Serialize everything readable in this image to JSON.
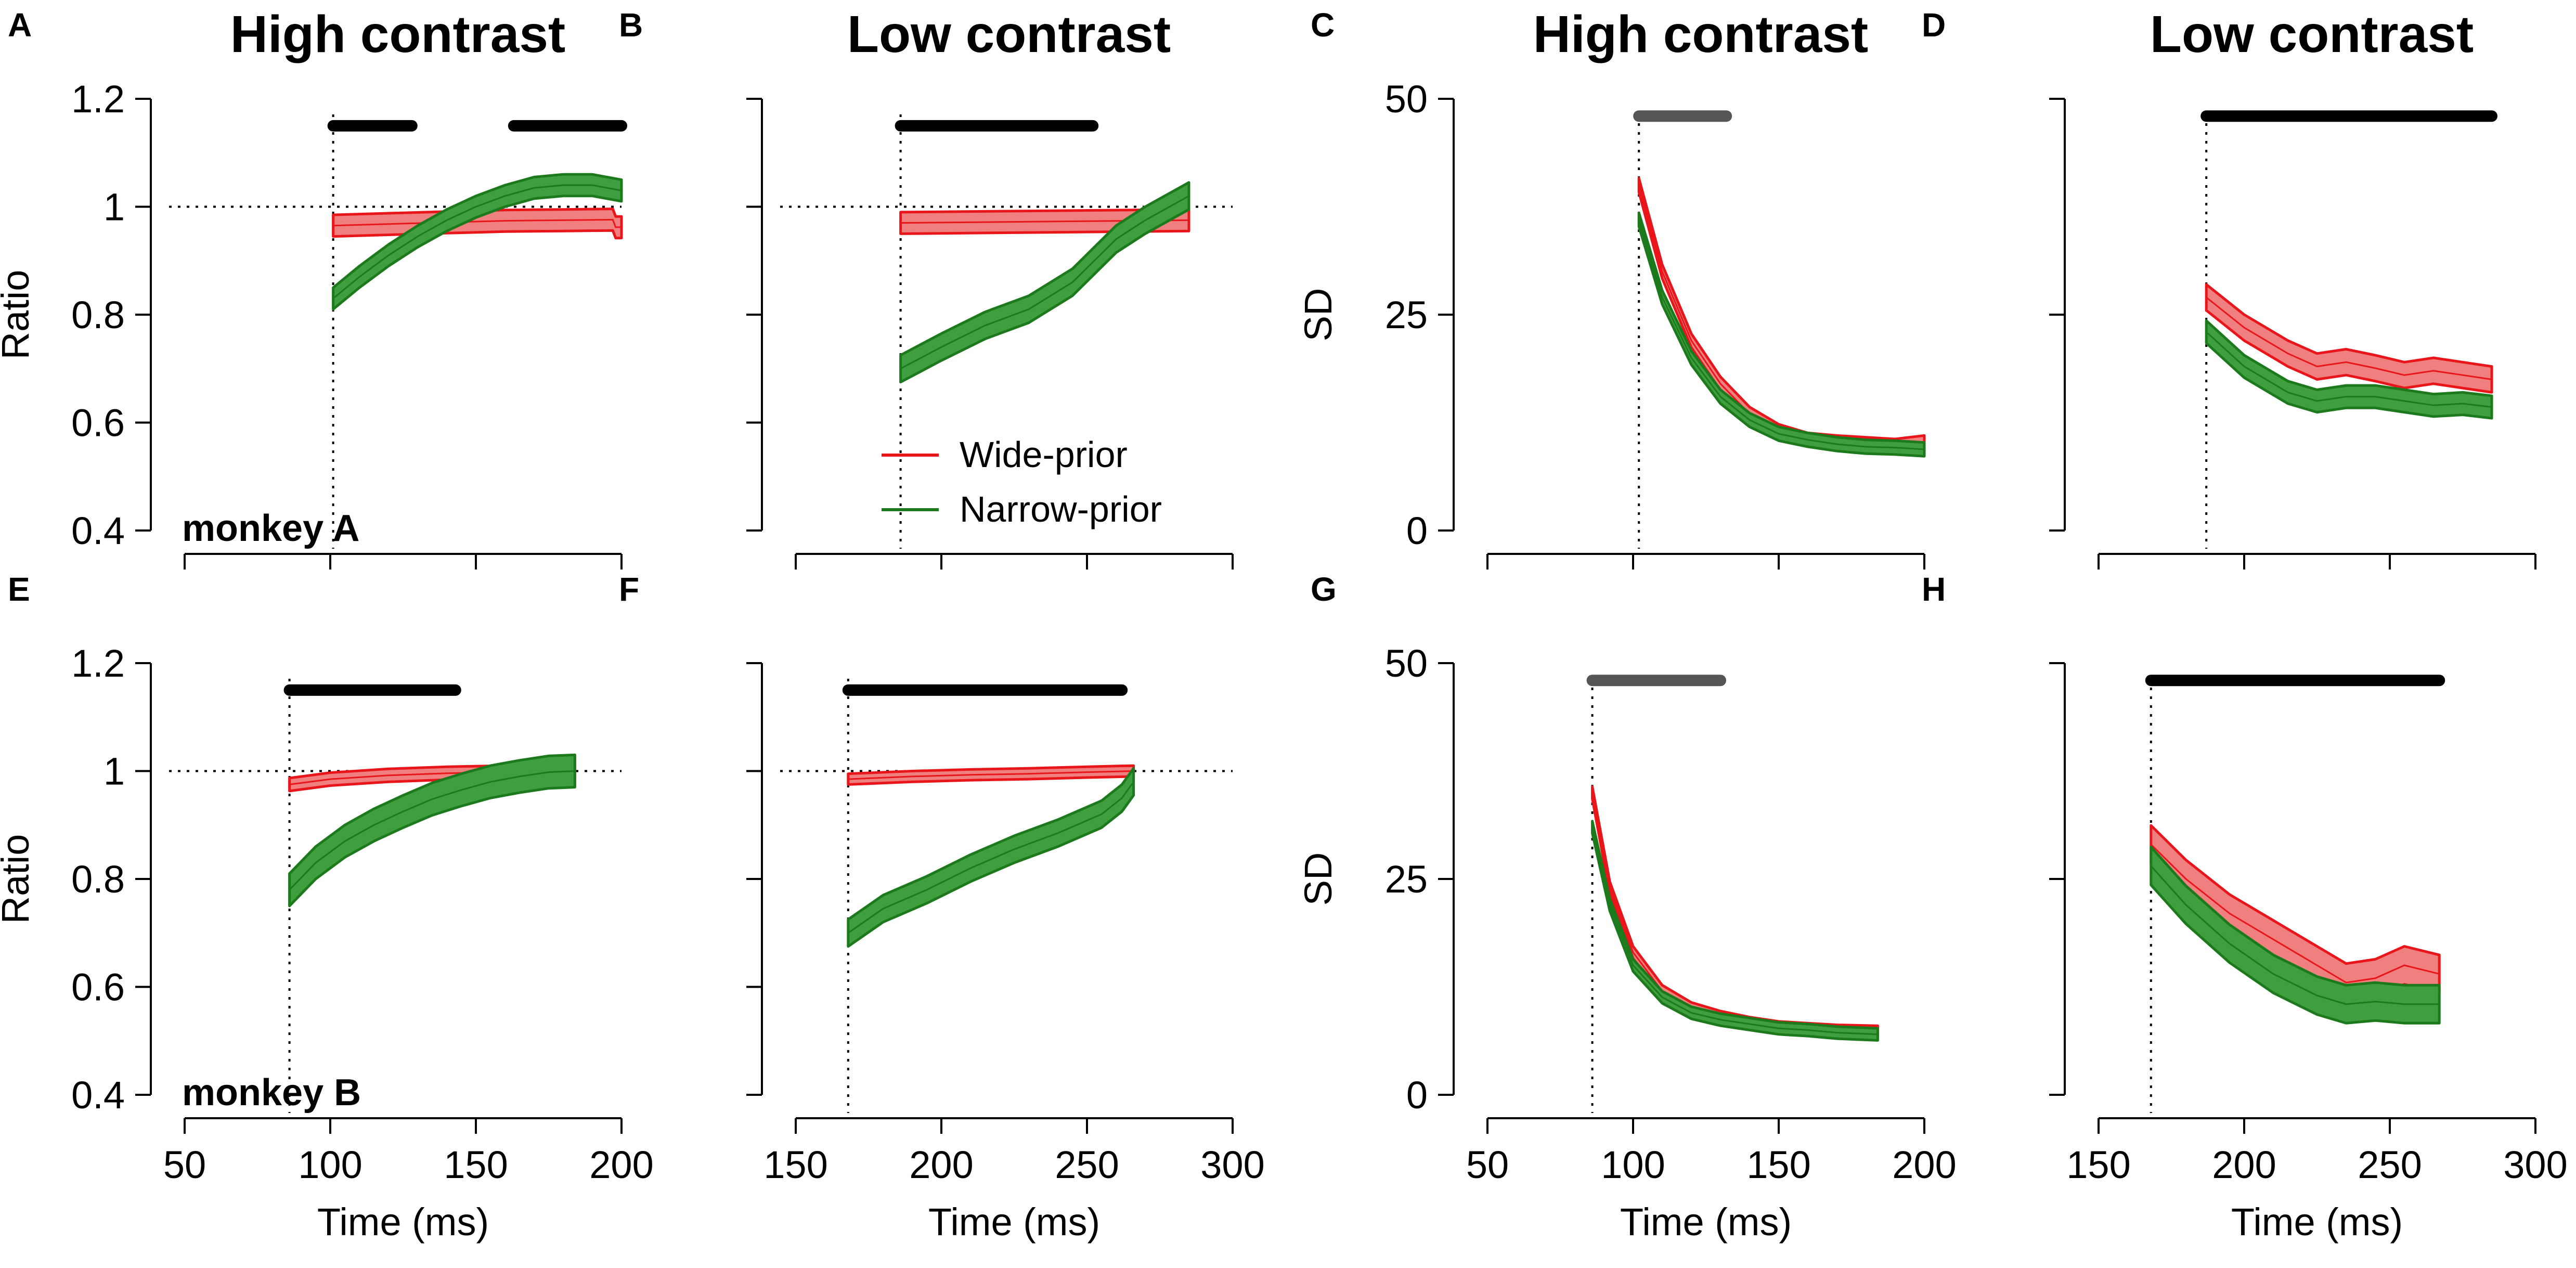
{
  "colors": {
    "wide": "#e8161b",
    "wide_band": "#f08080",
    "narrow": "#1c7a1c",
    "narrow_band": "#3f9f3f",
    "sig_black": "#000000",
    "sig_gray": "#555555"
  },
  "legend": {
    "wide": "Wide-prior",
    "narrow": "Narrow-prior"
  },
  "chart_data": [
    {
      "type": "line",
      "letter": "A",
      "title": "High contrast",
      "xlabel": "",
      "ylabel": "Ratio",
      "xlim": [
        50,
        200
      ],
      "ylim": [
        0.4,
        1.2
      ],
      "xticks": [
        50,
        100,
        150,
        200
      ],
      "yticks": [
        0.4,
        0.6,
        0.8,
        1,
        1.2
      ],
      "ytick_labels": [
        "0.4",
        "0.6",
        "0.8",
        "1",
        "1.2"
      ],
      "show_xtick_labels": false,
      "vline": 101,
      "hline": 1,
      "monkey": "monkey A",
      "sig_color": "black",
      "sig_bars": [
        [
          101,
          128
        ],
        [
          163,
          200
        ]
      ],
      "sig_y": 1.15,
      "series": [
        {
          "name": "Wide-prior",
          "band": 0.02,
          "x": [
            101,
            120,
            140,
            160,
            180,
            197,
            198,
            200
          ],
          "y": [
            0.965,
            0.968,
            0.971,
            0.974,
            0.975,
            0.976,
            0.962,
            0.962
          ]
        },
        {
          "name": "Narrow-prior",
          "band": 0.02,
          "x": [
            101,
            110,
            120,
            130,
            140,
            150,
            160,
            170,
            180,
            190,
            200
          ],
          "y": [
            0.83,
            0.87,
            0.91,
            0.945,
            0.975,
            1.0,
            1.02,
            1.035,
            1.04,
            1.04,
            1.03
          ]
        }
      ]
    },
    {
      "type": "line",
      "letter": "B",
      "title": "Low contrast",
      "xlabel": "",
      "ylabel": "",
      "xlim": [
        150,
        300
      ],
      "ylim": [
        0.4,
        1.2
      ],
      "xticks": [
        150,
        200,
        250,
        300
      ],
      "yticks": [
        0.4,
        0.6,
        0.8,
        1,
        1.2
      ],
      "ytick_labels": [],
      "show_xtick_labels": false,
      "vline": 186,
      "hline": 1,
      "monkey": "",
      "sig_color": "black",
      "sig_bars": [
        [
          186,
          252
        ]
      ],
      "sig_y": 1.15,
      "series": [
        {
          "name": "Wide-prior",
          "band": 0.02,
          "x": [
            186,
            285
          ],
          "y": [
            0.97,
            0.975
          ]
        },
        {
          "name": "Narrow-prior",
          "band": 0.025,
          "x": [
            186,
            200,
            215,
            230,
            245,
            260,
            270,
            285
          ],
          "y": [
            0.7,
            0.74,
            0.78,
            0.81,
            0.86,
            0.94,
            0.975,
            1.02
          ]
        }
      ]
    },
    {
      "type": "line",
      "letter": "C",
      "title": "High contrast",
      "xlabel": "",
      "ylabel": "SD",
      "xlim": [
        50,
        200
      ],
      "ylim": [
        0,
        50
      ],
      "xticks": [
        50,
        100,
        150,
        200
      ],
      "yticks": [
        0,
        25,
        50
      ],
      "ytick_labels": [
        "0",
        "25",
        "50"
      ],
      "show_xtick_labels": false,
      "vline": 102,
      "hline": null,
      "monkey": "",
      "sig_color": "gray",
      "sig_bars": [
        [
          102,
          132
        ]
      ],
      "sig_y": 48,
      "series": [
        {
          "name": "Wide-prior",
          "band": 0.8,
          "x": [
            102,
            110,
            120,
            130,
            140,
            150,
            160,
            170,
            180,
            190,
            200
          ],
          "y": [
            40,
            30,
            22,
            17,
            13.5,
            11.5,
            10.5,
            10.2,
            10,
            9.8,
            10.2
          ]
        },
        {
          "name": "Narrow-prior",
          "band": 0.8,
          "x": [
            102,
            110,
            120,
            130,
            140,
            150,
            160,
            170,
            180,
            190,
            200
          ],
          "y": [
            36,
            27,
            20,
            15.5,
            12.8,
            11.2,
            10.5,
            10,
            9.7,
            9.6,
            9.4
          ]
        }
      ]
    },
    {
      "type": "line",
      "letter": "D",
      "title": "Low contrast",
      "xlabel": "",
      "ylabel": "",
      "xlim": [
        150,
        300
      ],
      "ylim": [
        0,
        50
      ],
      "xticks": [
        150,
        200,
        250,
        300
      ],
      "yticks": [
        0,
        25,
        50
      ],
      "ytick_labels": [],
      "show_xtick_labels": false,
      "vline": 187,
      "hline": null,
      "monkey": "",
      "sig_color": "black",
      "sig_bars": [
        [
          187,
          285
        ]
      ],
      "sig_y": 48,
      "series": [
        {
          "name": "Wide-prior",
          "band": 1.5,
          "x": [
            187,
            200,
            215,
            225,
            235,
            245,
            255,
            265,
            275,
            285
          ],
          "y": [
            27,
            23.5,
            20.5,
            19,
            19.5,
            18.8,
            18,
            18.5,
            18,
            17.5
          ]
        },
        {
          "name": "Narrow-prior",
          "band": 1.3,
          "x": [
            187,
            200,
            215,
            225,
            235,
            245,
            255,
            265,
            275,
            285
          ],
          "y": [
            23,
            19,
            16,
            15,
            15.5,
            15.5,
            15,
            14.5,
            14.7,
            14.3
          ]
        }
      ]
    },
    {
      "type": "line",
      "letter": "E",
      "title": "",
      "xlabel": "Time (ms)",
      "ylabel": "Ratio",
      "xlim": [
        50,
        200
      ],
      "ylim": [
        0.4,
        1.2
      ],
      "xticks": [
        50,
        100,
        150,
        200
      ],
      "yticks": [
        0.4,
        0.6,
        0.8,
        1,
        1.2
      ],
      "ytick_labels": [
        "0.4",
        "0.6",
        "0.8",
        "1",
        "1.2"
      ],
      "show_xtick_labels": true,
      "xtick_labels": [
        "50",
        "100",
        "150",
        "200"
      ],
      "vline": 86,
      "hline": 1,
      "monkey": "monkey B",
      "sig_color": "black",
      "sig_bars": [
        [
          86,
          143
        ]
      ],
      "sig_y": 1.15,
      "series": [
        {
          "name": "Wide-prior",
          "band": 0.012,
          "x": [
            86,
            100,
            120,
            140,
            160,
            184
          ],
          "y": [
            0.975,
            0.985,
            0.992,
            0.996,
            0.998,
            1.0
          ]
        },
        {
          "name": "Narrow-prior",
          "band": 0.03,
          "x": [
            86,
            95,
            105,
            115,
            125,
            135,
            145,
            155,
            165,
            175,
            184
          ],
          "y": [
            0.78,
            0.83,
            0.87,
            0.9,
            0.925,
            0.948,
            0.965,
            0.98,
            0.99,
            0.998,
            1.0
          ]
        }
      ]
    },
    {
      "type": "line",
      "letter": "F",
      "title": "",
      "xlabel": "Time (ms)",
      "ylabel": "",
      "xlim": [
        150,
        300
      ],
      "ylim": [
        0.4,
        1.2
      ],
      "xticks": [
        150,
        200,
        250,
        300
      ],
      "yticks": [
        0.4,
        0.6,
        0.8,
        1,
        1.2
      ],
      "ytick_labels": [],
      "show_xtick_labels": true,
      "xtick_labels": [
        "150",
        "200",
        "250",
        "300"
      ],
      "vline": 168,
      "hline": 1,
      "monkey": "",
      "sig_color": "black",
      "sig_bars": [
        [
          168,
          262
        ]
      ],
      "sig_y": 1.15,
      "series": [
        {
          "name": "Wide-prior",
          "band": 0.01,
          "x": [
            168,
            190,
            210,
            230,
            250,
            266
          ],
          "y": [
            0.985,
            0.99,
            0.993,
            0.995,
            0.998,
            1.0
          ]
        },
        {
          "name": "Narrow-prior",
          "band": 0.025,
          "x": [
            168,
            180,
            195,
            210,
            225,
            240,
            255,
            262,
            266
          ],
          "y": [
            0.7,
            0.745,
            0.78,
            0.82,
            0.855,
            0.885,
            0.92,
            0.95,
            0.98
          ]
        }
      ]
    },
    {
      "type": "line",
      "letter": "G",
      "title": "",
      "xlabel": "Time (ms)",
      "ylabel": "SD",
      "xlim": [
        50,
        200
      ],
      "ylim": [
        0,
        50
      ],
      "xticks": [
        50,
        100,
        150,
        200
      ],
      "yticks": [
        0,
        25,
        50
      ],
      "ytick_labels": [
        "0",
        "25",
        "50"
      ],
      "show_xtick_labels": true,
      "xtick_labels": [
        "50",
        "100",
        "150",
        "200"
      ],
      "vline": 86,
      "hline": null,
      "monkey": "",
      "sig_color": "gray",
      "sig_bars": [
        [
          86,
          130
        ]
      ],
      "sig_y": 48,
      "series": [
        {
          "name": "Wide-prior",
          "band": 0.7,
          "x": [
            86,
            92,
            100,
            110,
            120,
            130,
            140,
            150,
            160,
            170,
            184
          ],
          "y": [
            35,
            24,
            16.5,
            12,
            10,
            9,
            8.3,
            7.8,
            7.6,
            7.4,
            7.3
          ]
        },
        {
          "name": "Narrow-prior",
          "band": 0.7,
          "x": [
            86,
            92,
            100,
            110,
            120,
            130,
            140,
            150,
            160,
            170,
            184
          ],
          "y": [
            31,
            22,
            15,
            11.3,
            9.5,
            8.7,
            8.2,
            7.7,
            7.5,
            7.2,
            7.0
          ]
        }
      ]
    },
    {
      "type": "line",
      "letter": "H",
      "title": "",
      "xlabel": "Time (ms)",
      "ylabel": "",
      "xlim": [
        150,
        300
      ],
      "ylim": [
        0,
        50
      ],
      "xticks": [
        150,
        200,
        250,
        300
      ],
      "yticks": [
        0,
        25,
        50
      ],
      "ytick_labels": [],
      "show_xtick_labels": true,
      "xtick_labels": [
        "150",
        "200",
        "250",
        "300"
      ],
      "vline": 168,
      "hline": null,
      "monkey": "",
      "sig_color": "black",
      "sig_bars": [
        [
          168,
          267
        ]
      ],
      "sig_y": 48,
      "series": [
        {
          "name": "Wide-prior",
          "band": 2.2,
          "x": [
            168,
            180,
            195,
            210,
            225,
            235,
            245,
            255,
            267
          ],
          "y": [
            29,
            25,
            21,
            18,
            15,
            13,
            13.5,
            15,
            14
          ]
        },
        {
          "name": "Narrow-prior",
          "band": 2.2,
          "x": [
            168,
            180,
            195,
            210,
            225,
            235,
            245,
            255,
            267
          ],
          "y": [
            26.5,
            22,
            17.5,
            14,
            11.5,
            10.5,
            10.8,
            10.5,
            10.5
          ]
        }
      ]
    }
  ]
}
